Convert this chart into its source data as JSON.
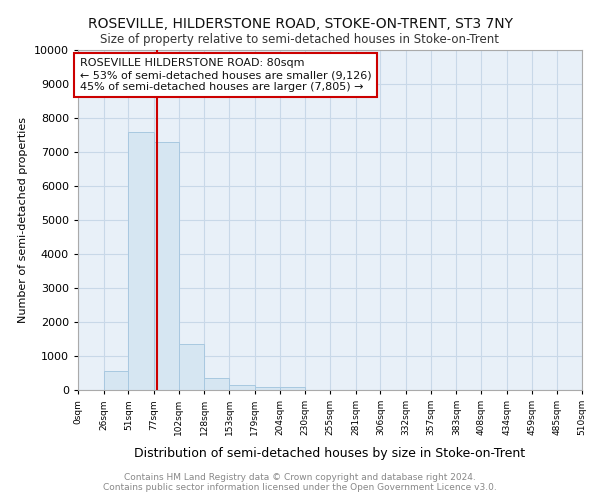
{
  "title": "ROSEVILLE, HILDERSTONE ROAD, STOKE-ON-TRENT, ST3 7NY",
  "subtitle": "Size of property relative to semi-detached houses in Stoke-on-Trent",
  "xlabel": "Distribution of semi-detached houses by size in Stoke-on-Trent",
  "ylabel": "Number of semi-detached properties",
  "footer": "Contains HM Land Registry data © Crown copyright and database right 2024.\nContains public sector information licensed under the Open Government Licence v3.0.",
  "bar_edges": [
    0,
    26,
    51,
    77,
    102,
    128,
    153,
    179,
    204,
    230,
    255,
    281,
    306,
    332,
    357,
    383,
    408,
    434,
    459,
    485,
    510
  ],
  "bar_heights": [
    0,
    550,
    7600,
    7300,
    1350,
    350,
    150,
    100,
    100,
    0,
    0,
    0,
    0,
    0,
    0,
    0,
    0,
    0,
    0,
    0
  ],
  "bar_color": "#d6e6f2",
  "bar_edge_color": "#a8c8e0",
  "property_size": 80,
  "red_line_color": "#cc0000",
  "annotation_text": "ROSEVILLE HILDERSTONE ROAD: 80sqm\n← 53% of semi-detached houses are smaller (9,126)\n45% of semi-detached houses are larger (7,805) →",
  "annotation_box_color": "#ffffff",
  "annotation_box_edge": "#cc0000",
  "ylim": [
    0,
    10000
  ],
  "yticks": [
    0,
    1000,
    2000,
    3000,
    4000,
    5000,
    6000,
    7000,
    8000,
    9000,
    10000
  ],
  "tick_labels": [
    "0sqm",
    "26sqm",
    "51sqm",
    "77sqm",
    "102sqm",
    "128sqm",
    "153sqm",
    "179sqm",
    "204sqm",
    "230sqm",
    "255sqm",
    "281sqm",
    "306sqm",
    "332sqm",
    "357sqm",
    "383sqm",
    "408sqm",
    "434sqm",
    "459sqm",
    "485sqm",
    "510sqm"
  ],
  "grid_color": "#c8d8e8",
  "background_color": "#e8f0f8"
}
